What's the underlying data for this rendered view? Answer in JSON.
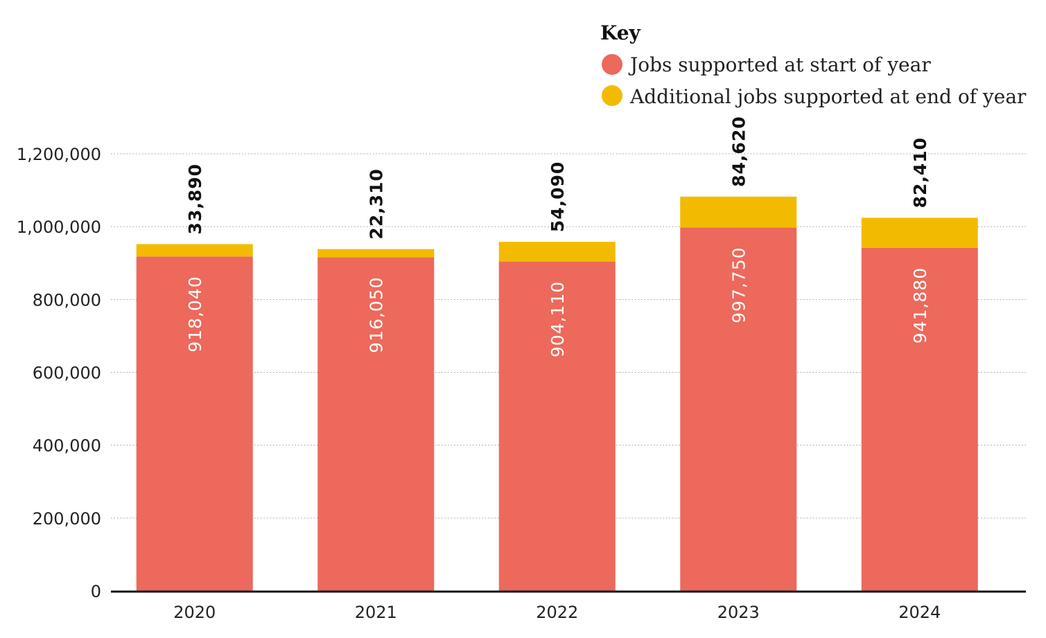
{
  "chart_data": {
    "type": "bar",
    "stacked": true,
    "categories": [
      "2020",
      "2021",
      "2022",
      "2023",
      "2024"
    ],
    "series": [
      {
        "name": "Jobs supported at start of year",
        "color": "#EC695C",
        "values": [
          918040,
          916050,
          904110,
          997750,
          941880
        ],
        "labels": [
          "918,040",
          "916,050",
          "904,110",
          "997,750",
          "941,880"
        ]
      },
      {
        "name": "Additional jobs supported at end of year",
        "color": "#F2BB00",
        "values": [
          33890,
          22310,
          54090,
          84620,
          82410
        ],
        "labels": [
          "33,890",
          "22,310",
          "54,090",
          "84,620",
          "82,410"
        ]
      }
    ],
    "yticks": [
      0,
      200000,
      400000,
      600000,
      800000,
      1000000,
      1200000
    ],
    "ytick_labels": [
      "0",
      "200,000",
      "400,000",
      "600,000",
      "800,000",
      "1,000,000",
      "1,200,000"
    ],
    "ylim": [
      0,
      1200000
    ],
    "grid": true,
    "legend": {
      "title": "Key",
      "placement": "top-right"
    }
  }
}
